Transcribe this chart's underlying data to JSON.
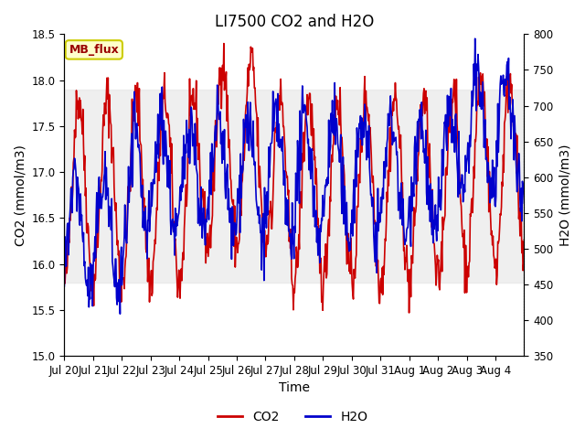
{
  "title": "LI7500 CO2 and H2O",
  "xlabel": "Time",
  "ylabel_left": "CO2 (mmol/m3)",
  "ylabel_right": "H2O (mmol/m3)",
  "ylim_left": [
    15.0,
    18.5
  ],
  "ylim_right": [
    350,
    800
  ],
  "yticks_left": [
    15.0,
    15.5,
    16.0,
    16.5,
    17.0,
    17.5,
    18.0,
    18.5
  ],
  "yticks_right": [
    350,
    400,
    450,
    500,
    550,
    600,
    650,
    700,
    750,
    800
  ],
  "n_days": 16,
  "xtick_positions": [
    0,
    1,
    2,
    3,
    4,
    5,
    6,
    7,
    8,
    9,
    10,
    11,
    12,
    13,
    14,
    15
  ],
  "xtick_labels": [
    "Jul 20",
    "Jul 21",
    "Jul 22",
    "Jul 23",
    "Jul 24",
    "Jul 25",
    "Jul 26",
    "Jul 27",
    "Jul 28",
    "Jul 29",
    "Jul 30",
    "Jul 31",
    "Aug 1",
    "Aug 2",
    "Aug 3",
    "Aug 4"
  ],
  "co2_color": "#cc0000",
  "h2o_color": "#0000cc",
  "linewidth": 1.2,
  "shading_color": "#e0e0e0",
  "shading_alpha": 0.5,
  "shading_ymin": 15.8,
  "shading_ymax": 17.9,
  "annotation_text": "MB_flux",
  "annotation_bg": "#ffffcc",
  "annotation_border": "#cccc00",
  "legend_co2": "CO2",
  "legend_h2o": "H2O",
  "background_color": "#ffffff",
  "title_fontsize": 12,
  "axis_fontsize": 10,
  "tick_fontsize": 8.5
}
